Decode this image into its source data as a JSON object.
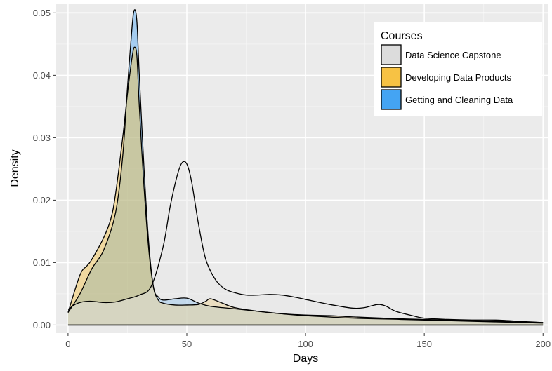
{
  "chart_data": {
    "type": "area",
    "title": "",
    "xlabel": "Days",
    "ylabel": "Density",
    "xlim": [
      -5,
      202
    ],
    "ylim": [
      -0.0013,
      0.0515
    ],
    "x_ticks": [
      0,
      50,
      100,
      150,
      200
    ],
    "y_ticks": [
      0.0,
      0.01,
      0.02,
      0.03,
      0.04,
      0.05
    ],
    "x_tick_labels": [
      "0",
      "50",
      "100",
      "150",
      "200"
    ],
    "y_tick_labels": [
      "0.00",
      "0.01",
      "0.02",
      "0.03",
      "0.04",
      "0.05"
    ],
    "grid": true,
    "legend": {
      "title": "Courses",
      "position": "top-right"
    },
    "series": [
      {
        "name": "Getting and Cleaning Data",
        "color": "#4ea6f5",
        "x": [
          0,
          5,
          10,
          15,
          20,
          23,
          25,
          27,
          28,
          29,
          30,
          32,
          34,
          36,
          38,
          40,
          45,
          50,
          55,
          60,
          70,
          80,
          90,
          100,
          120,
          140,
          160,
          180,
          200
        ],
        "y": [
          0.002,
          0.005,
          0.009,
          0.012,
          0.018,
          0.027,
          0.038,
          0.048,
          0.0505,
          0.0485,
          0.04,
          0.025,
          0.013,
          0.006,
          0.0045,
          0.004,
          0.0042,
          0.0043,
          0.0035,
          0.003,
          0.0026,
          0.0022,
          0.0018,
          0.0015,
          0.0011,
          0.0009,
          0.0007,
          0.0005,
          0.0003
        ]
      },
      {
        "name": "Developing Data Products",
        "color": "#f5c044",
        "x": [
          0,
          5,
          8,
          10,
          15,
          18,
          20,
          23,
          25,
          27,
          28,
          29,
          30,
          32,
          34,
          36,
          38,
          40,
          45,
          50,
          55,
          58,
          60,
          65,
          70,
          80,
          90,
          100,
          110,
          120,
          140,
          160,
          180,
          200
        ],
        "y": [
          0.002,
          0.008,
          0.0095,
          0.0105,
          0.014,
          0.017,
          0.021,
          0.03,
          0.037,
          0.043,
          0.0445,
          0.043,
          0.035,
          0.022,
          0.012,
          0.006,
          0.004,
          0.0035,
          0.0032,
          0.0032,
          0.0033,
          0.0038,
          0.0042,
          0.0035,
          0.0028,
          0.0022,
          0.0018,
          0.0016,
          0.0015,
          0.0013,
          0.001,
          0.0008,
          0.0006,
          0.0004
        ]
      },
      {
        "name": "Data Science Capstone",
        "color": "#e6e6e6",
        "x": [
          0,
          3,
          6,
          10,
          15,
          20,
          25,
          30,
          35,
          40,
          43,
          46,
          48,
          50,
          52,
          55,
          58,
          62,
          66,
          70,
          75,
          80,
          85,
          90,
          95,
          100,
          110,
          120,
          125,
          128,
          131,
          134,
          138,
          145,
          150,
          160,
          170,
          180,
          190,
          200
        ],
        "y": [
          0.0025,
          0.0033,
          0.0037,
          0.0038,
          0.0036,
          0.0037,
          0.0042,
          0.0048,
          0.0062,
          0.0125,
          0.019,
          0.024,
          0.026,
          0.0258,
          0.023,
          0.016,
          0.0105,
          0.0073,
          0.0058,
          0.0052,
          0.0048,
          0.0048,
          0.0049,
          0.0048,
          0.0045,
          0.0041,
          0.0033,
          0.0027,
          0.0028,
          0.0031,
          0.0033,
          0.003,
          0.0022,
          0.0015,
          0.0011,
          0.0009,
          0.0008,
          0.0008,
          0.0006,
          0.0004
        ]
      }
    ],
    "colors": {
      "panel_bg": "#ebebeb",
      "grid_major": "#ffffff",
      "overlap_fill_tint": "#c7c89f",
      "outline": "#000000",
      "tick_text": "#4d4d4d"
    }
  }
}
